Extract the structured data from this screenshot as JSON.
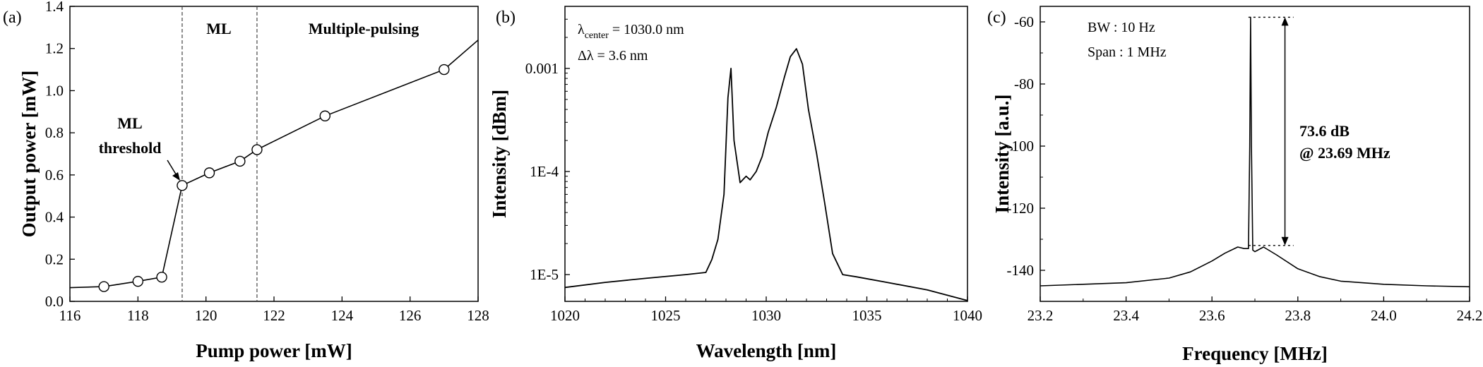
{
  "chart_data": [
    {
      "panel_label": "(a)",
      "type": "line",
      "xlabel": "Pump power [mW]",
      "ylabel": "Output power [mW]",
      "xlim": [
        116,
        128
      ],
      "ylim": [
        0.0,
        1.4
      ],
      "x_ticks": [
        "116",
        "118",
        "120",
        "122",
        "124",
        "126",
        "128"
      ],
      "y_ticks": [
        "0.0",
        "0.2",
        "0.4",
        "0.6",
        "0.8",
        "1.0",
        "1.2",
        "1.4"
      ],
      "series": [
        {
          "x": [
            116,
            117,
            118,
            118.7,
            119.3,
            120.1,
            121,
            121.5,
            123.5,
            127,
            128
          ],
          "y": [
            0.065,
            0.07,
            0.095,
            0.115,
            0.55,
            0.61,
            0.665,
            0.72,
            0.88,
            1.1,
            1.24
          ],
          "markers": [
            false,
            true,
            true,
            true,
            true,
            true,
            true,
            true,
            true,
            true,
            false
          ]
        }
      ],
      "vlines": [
        119.3,
        121.5
      ],
      "region_labels": [
        "ML",
        "Multiple-pulsing"
      ],
      "annotation_lines": [
        "ML",
        "threshold"
      ],
      "arrow_target": {
        "x": 119.3,
        "y": 0.55
      }
    },
    {
      "panel_label": "(b)",
      "type": "line",
      "xlabel": "Wavelength [nm]",
      "ylabel": "Intensity [dBm]",
      "yscale": "log",
      "xlim": [
        1020,
        1040
      ],
      "ylim": [
        5.5e-06,
        0.004
      ],
      "x_ticks": [
        1020,
        1025,
        1030,
        1035,
        1040
      ],
      "x_tick_labels": [
        "1020",
        "1025",
        "1030",
        "1035",
        "1040"
      ],
      "y_ticks": [
        1e-05,
        0.0001,
        0.001
      ],
      "y_tick_labels": [
        "1E-5",
        "1E-4",
        "0.001"
      ],
      "series": [
        {
          "x": [
            1020,
            1022,
            1024,
            1026,
            1027,
            1027.3,
            1027.6,
            1027.9,
            1028.1,
            1028.25,
            1028.4,
            1028.7,
            1029,
            1029.2,
            1029.5,
            1029.8,
            1030.1,
            1030.5,
            1030.9,
            1031.2,
            1031.5,
            1031.8,
            1032.1,
            1032.5,
            1032.9,
            1033.3,
            1033.8,
            1034.5,
            1036,
            1038,
            1040
          ],
          "y": [
            7.5e-06,
            8.4e-06,
            9.2e-06,
            1e-05,
            1.05e-05,
            1.4e-05,
            2.2e-05,
            6e-05,
            0.00052,
            0.001,
            0.0002,
            7.8e-05,
            9e-05,
            8.3e-05,
            0.0001,
            0.00014,
            0.00024,
            0.00042,
            0.00082,
            0.0013,
            0.00155,
            0.0011,
            0.0004,
            0.00015,
            5e-05,
            1.6e-05,
            1e-05,
            9.5e-06,
            8.4e-06,
            7.1e-06,
            5.6e-06
          ]
        }
      ],
      "annotations": {
        "center_symbol": "λ",
        "center_sub": "center",
        "center_value": " = 1030.0 nm",
        "width_text": "Δλ =  3.6 nm"
      }
    },
    {
      "panel_label": "(c)",
      "type": "line",
      "xlabel": "Frequency [MHz]",
      "ylabel": "Intensity [a.u.]",
      "xlim": [
        23.2,
        24.2
      ],
      "ylim": [
        -150,
        -55
      ],
      "x_ticks": [
        "23.2",
        "23.4",
        "23.6",
        "23.8",
        "24.0",
        "24.2"
      ],
      "y_ticks": [
        "-60",
        "-80",
        "-100",
        "-120",
        "-140"
      ],
      "series": [
        {
          "x": [
            23.2,
            23.3,
            23.4,
            23.5,
            23.55,
            23.6,
            23.63,
            23.66,
            23.675,
            23.685,
            23.688,
            23.69,
            23.692,
            23.695,
            23.7,
            23.72,
            23.75,
            23.8,
            23.85,
            23.9,
            24.0,
            24.1,
            24.2
          ],
          "y": [
            -145,
            -144.5,
            -144,
            -142.5,
            -140.5,
            -137,
            -134.5,
            -132.5,
            -133,
            -133,
            -100,
            -58.5,
            -100,
            -133.5,
            -134,
            -132.5,
            -135,
            -139.5,
            -142,
            -143.5,
            -144.5,
            -145,
            -145.3
          ]
        }
      ],
      "annotations": {
        "bw": "BW : 10 Hz",
        "span": "Span : 1 MHz",
        "snr": "73.6 dB",
        "freq": "@ 23.69 MHz",
        "ref_top": -58.5,
        "ref_bottom": -132
      }
    }
  ]
}
